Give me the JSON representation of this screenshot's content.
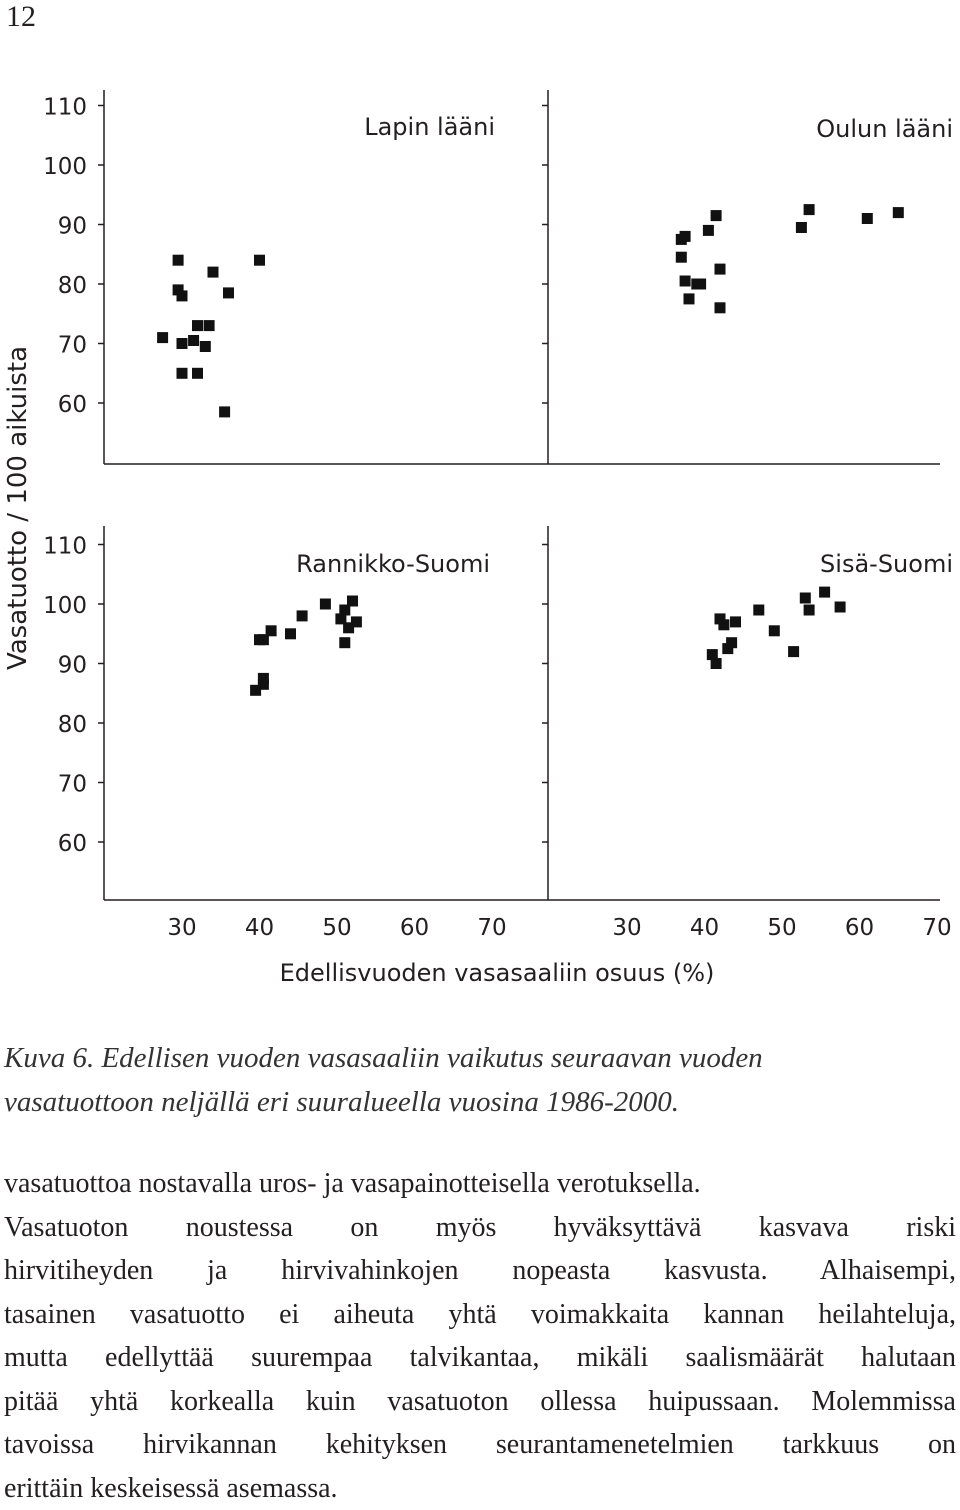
{
  "page_number": "12",
  "chart_data": {
    "type": "scatter",
    "ylabel": "Vasatuotto / 100 aikuista",
    "xlabel": "Edellisvuoden vasasaaliin osuus (%)",
    "y_ticks_top": [
      "60",
      "70",
      "80",
      "90",
      "100",
      "110"
    ],
    "y_ticks_bottom": [
      "60",
      "70",
      "80",
      "90",
      "100",
      "110"
    ],
    "x_ticks_left": [
      "30",
      "40",
      "50",
      "60",
      "70"
    ],
    "x_ticks_right": [
      "30",
      "40",
      "50",
      "60",
      "70"
    ],
    "panels": [
      {
        "name": "Lapin lääni",
        "xlim": [
          20,
          80
        ],
        "ylim": [
          50,
          113
        ],
        "points": [
          [
            27.5,
            71
          ],
          [
            30,
            70
          ],
          [
            29.5,
            84
          ],
          [
            29.5,
            79
          ],
          [
            30,
            78
          ],
          [
            30,
            65
          ],
          [
            32,
            65
          ],
          [
            31.5,
            70.5
          ],
          [
            32,
            73
          ],
          [
            33,
            69.5
          ],
          [
            33.5,
            73
          ],
          [
            34,
            82
          ],
          [
            35.5,
            58.5
          ],
          [
            36,
            78.5
          ],
          [
            40,
            84
          ]
        ]
      },
      {
        "name": "Oulun lääni",
        "xlim": [
          20,
          80
        ],
        "ylim": [
          50,
          113
        ],
        "points": [
          [
            37,
            87.5
          ],
          [
            37.5,
            88
          ],
          [
            37,
            84.5
          ],
          [
            37.5,
            80.5
          ],
          [
            38,
            77.5
          ],
          [
            39,
            80
          ],
          [
            39.5,
            80
          ],
          [
            40.5,
            89
          ],
          [
            41.5,
            91.5
          ],
          [
            42,
            82.5
          ],
          [
            42,
            76
          ],
          [
            52.5,
            89.5
          ],
          [
            53.5,
            92.5
          ],
          [
            61,
            91
          ],
          [
            65,
            92
          ]
        ]
      },
      {
        "name": "Rannikko-Suomi",
        "xlim": [
          20,
          80
        ],
        "ylim": [
          50,
          113
        ],
        "points": [
          [
            39.5,
            85.5
          ],
          [
            40.5,
            86.5
          ],
          [
            40.5,
            87.5
          ],
          [
            40,
            94
          ],
          [
            40.5,
            94
          ],
          [
            41.5,
            95.5
          ],
          [
            44,
            95
          ],
          [
            45.5,
            98
          ],
          [
            48.5,
            100
          ],
          [
            50.5,
            97.5
          ],
          [
            51,
            99
          ],
          [
            51.5,
            96
          ],
          [
            51,
            93.5
          ],
          [
            52,
            100.5
          ],
          [
            52.5,
            97
          ]
        ]
      },
      {
        "name": "Sisä-Suomi",
        "xlim": [
          20,
          80
        ],
        "ylim": [
          50,
          113
        ],
        "points": [
          [
            41,
            91.5
          ],
          [
            41.5,
            90
          ],
          [
            42,
            97.5
          ],
          [
            42.5,
            96.5
          ],
          [
            43,
            92.5
          ],
          [
            43.5,
            93.5
          ],
          [
            44,
            97
          ],
          [
            47,
            99
          ],
          [
            49,
            95.5
          ],
          [
            51.5,
            92
          ],
          [
            53,
            101
          ],
          [
            53.5,
            99
          ],
          [
            55.5,
            102
          ],
          [
            57.5,
            99.5
          ]
        ]
      }
    ]
  },
  "caption": {
    "lines": [
      "Kuva 6. Edellisen vuoden vasasaaliin vaikutus seuraavan vuoden",
      "vasatuottoon neljällä eri suuralueella vuosina 1986-2000."
    ]
  },
  "body": {
    "lines": [
      "vasatuottoa nostavalla uros- ja vasapainotteisella verotuksella.",
      "Vasatuoton noustessa on myös hyväksyttävä kasvava riski",
      "hirvitiheyden ja hirvivahinkojen nopeasta kasvusta. Alhaisempi,",
      "tasainen vasatuotto ei aiheuta yhtä voimakkaita kannan heilahteluja,",
      "mutta edellyttää suurempaa talvikantaa, mikäli saalismäärät halutaan",
      "pitää yhtä korkealla kuin vasatuoton ollessa huipussaan. Molemmissa",
      "tavoissa hirvikannan kehityksen seurantamenetelmien tarkkuus on",
      "erittäin keskeisessä asemassa."
    ]
  }
}
